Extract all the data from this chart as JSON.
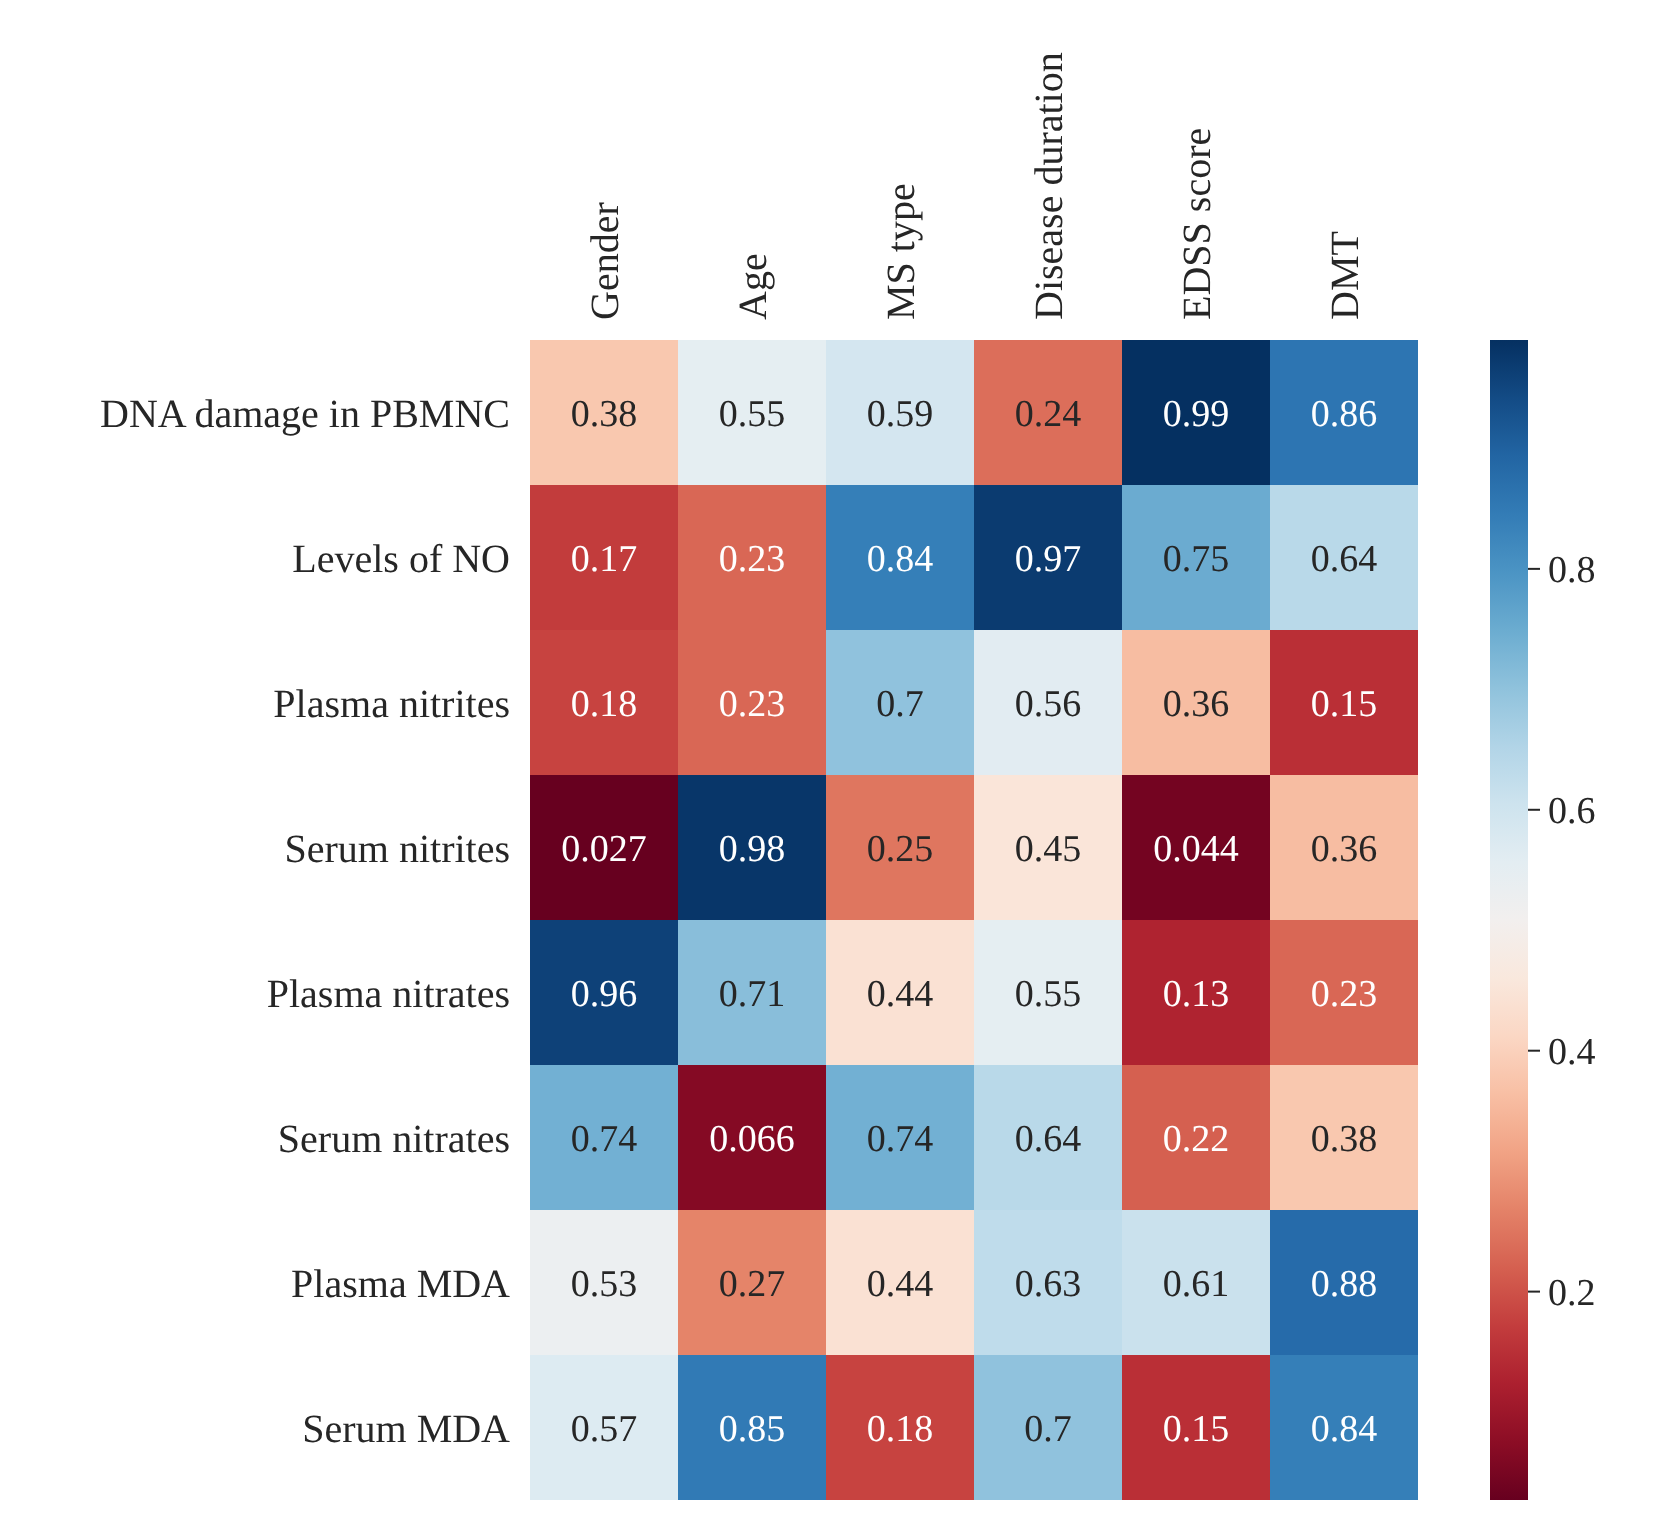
{
  "chart_data": {
    "type": "heatmap",
    "categories": [
      "Gender",
      "Age",
      "MS type",
      "Disease duration",
      "EDSS score",
      "DMT"
    ],
    "y_categories": [
      "DNA damage in PBMNC",
      "Levels of NO",
      "Plasma nitrites",
      "Serum nitrites",
      "Plasma nitrates",
      "Serum nitrates",
      "Plasma MDA",
      "Serum MDA"
    ],
    "cells": [
      [
        0.38,
        0.55,
        0.59,
        0.24,
        0.99,
        0.86
      ],
      [
        0.17,
        0.23,
        0.84,
        0.97,
        0.75,
        0.64
      ],
      [
        0.18,
        0.23,
        0.7,
        0.56,
        0.36,
        0.15
      ],
      [
        0.027,
        0.98,
        0.25,
        0.45,
        0.044,
        0.36
      ],
      [
        0.96,
        0.71,
        0.44,
        0.55,
        0.13,
        0.23
      ],
      [
        0.74,
        0.066,
        0.74,
        0.64,
        0.22,
        0.38
      ],
      [
        0.53,
        0.27,
        0.44,
        0.63,
        0.61,
        0.88
      ],
      [
        0.57,
        0.85,
        0.18,
        0.7,
        0.15,
        0.84
      ]
    ],
    "data_labels": true,
    "clim": [
      0.027,
      0.99
    ],
    "cticks": [
      0.2,
      0.4,
      0.6,
      0.8
    ]
  }
}
